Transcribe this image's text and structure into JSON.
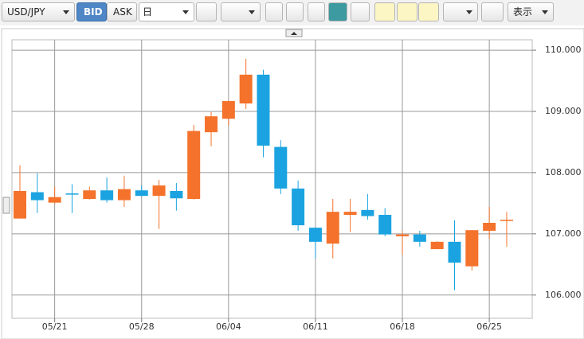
{
  "toolbar": {
    "symbol": "USD/JPY",
    "bid": "BID",
    "ask": "ASK",
    "period": "日",
    "display": "表示"
  },
  "chart_data": {
    "type": "candlestick",
    "categories": [
      null,
      null,
      "05/21",
      null,
      null,
      null,
      null,
      "05/28",
      null,
      null,
      null,
      null,
      "06/04",
      null,
      null,
      null,
      null,
      "06/11",
      null,
      null,
      null,
      null,
      "06/18",
      null,
      null,
      null,
      null,
      "06/25",
      null
    ],
    "open": [
      107.25,
      107.68,
      107.51,
      107.66,
      107.57,
      107.71,
      107.55,
      107.71,
      107.62,
      107.7,
      107.57,
      108.66,
      108.88,
      109.13,
      109.6,
      108.42,
      107.74,
      107.1,
      106.84,
      107.31,
      107.39,
      107.31,
      106.96,
      106.99,
      106.75,
      106.87,
      106.47,
      107.05,
      107.21
    ],
    "high": [
      108.12,
      107.99,
      107.77,
      107.81,
      107.77,
      107.92,
      107.95,
      107.79,
      107.88,
      107.83,
      108.78,
      108.99,
      109.17,
      109.86,
      109.68,
      108.53,
      107.87,
      107.1,
      107.57,
      107.57,
      107.65,
      107.42,
      107.05,
      107.05,
      106.88,
      107.22,
      107.06,
      107.44,
      107.36
    ],
    "low": [
      107.27,
      107.34,
      107.49,
      107.34,
      107.56,
      107.51,
      107.44,
      107.61,
      107.08,
      107.38,
      107.56,
      108.43,
      108.77,
      109.04,
      108.25,
      107.65,
      107.05,
      106.6,
      106.6,
      107.03,
      107.23,
      106.96,
      106.66,
      106.79,
      106.75,
      106.08,
      106.4,
      106.92,
      106.79
    ],
    "close": [
      107.7,
      107.55,
      107.6,
      107.64,
      107.71,
      107.55,
      107.73,
      107.62,
      107.79,
      107.58,
      108.68,
      108.92,
      109.17,
      109.6,
      108.44,
      107.74,
      107.14,
      106.87,
      107.36,
      107.36,
      107.29,
      106.99,
      106.99,
      106.87,
      106.87,
      106.53,
      107.06,
      107.18,
      107.23
    ],
    "up_color": "#f4722b",
    "down_color": "#1aa3e0",
    "ylim": [
      105.62,
      110.17
    ],
    "yticks": [
      {
        "value": 106,
        "label": "106.000"
      },
      {
        "value": 107,
        "label": "107.000"
      },
      {
        "value": 108,
        "label": "108.000"
      },
      {
        "value": 109,
        "label": "109.000"
      },
      {
        "value": 110,
        "label": "110.000"
      }
    ],
    "grid": true
  }
}
